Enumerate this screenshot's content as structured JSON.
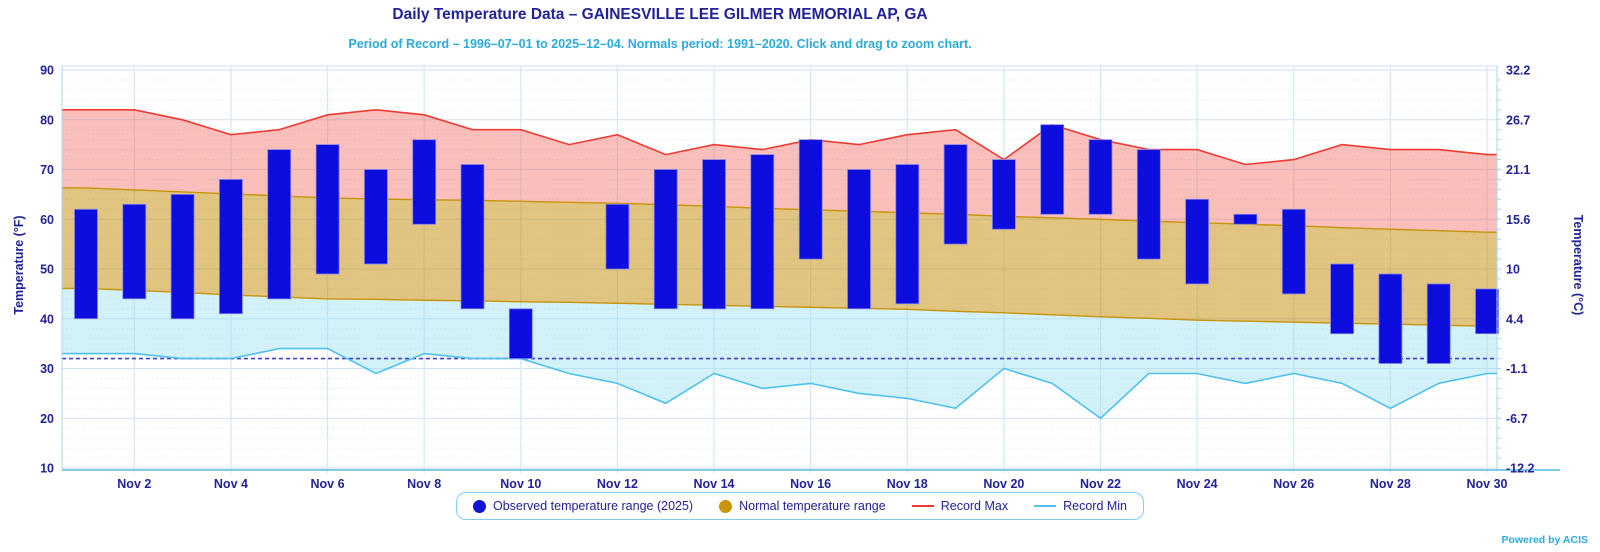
{
  "header": {
    "title": "Daily Temperature Data – GAINESVILLE LEE GILMER MEMORIAL AP, GA",
    "subtitle": "Period of Record – 1996–07–01 to 2025–12–04. Normals period: 1991–2020. Click and drag to zoom chart."
  },
  "footer": {
    "powered_by": "Powered by ACIS"
  },
  "axes": {
    "left_title": "Temperature (°F)",
    "right_title": "Temperature (°C)",
    "left_ticks_f": [
      90,
      80,
      70,
      60,
      50,
      40,
      30,
      20,
      10
    ],
    "right_ticks_c": [
      "32.2",
      "26.7",
      "21.1",
      "15.6",
      "10",
      "4.4",
      "-1.1",
      "-6.7",
      "-12.2"
    ],
    "x_tick_days": [
      2,
      4,
      6,
      8,
      10,
      12,
      14,
      16,
      18,
      20,
      22,
      24,
      26,
      28,
      30
    ],
    "x_tick_labels": [
      "Nov 2",
      "Nov 4",
      "Nov 6",
      "Nov 8",
      "Nov 10",
      "Nov 12",
      "Nov 14",
      "Nov 16",
      "Nov 18",
      "Nov 20",
      "Nov 22",
      "Nov 24",
      "Nov 26",
      "Nov 28",
      "Nov 30"
    ]
  },
  "legend": {
    "items": [
      {
        "label": "Observed temperature range (2025)",
        "swatch": "dot",
        "color": "#1313d6"
      },
      {
        "label": "Normal temperature range",
        "swatch": "dot",
        "color": "#c8940a"
      },
      {
        "label": "Record Max",
        "swatch": "line",
        "color": "#ee3b33"
      },
      {
        "label": "Record Min",
        "swatch": "line",
        "color": "#4fc1ef"
      }
    ]
  },
  "colors": {
    "text_navy": "#22229a",
    "subtitle_cyan": "#2aabdf",
    "bar_fill": "#0d0ddd",
    "bar_stroke": "#8585e6",
    "record_max_line": "#ee3b33",
    "record_max_fill": "rgba(244,103,92,0.42)",
    "normal_edge": "#c8940a",
    "normal_fill": "rgba(198,148,24,0.55)",
    "record_min_line": "#4fc1ef",
    "record_min_fill": "rgba(158,224,239,0.45)",
    "freezing_line": "#4040d0",
    "grid_major": "#cfe2f4",
    "grid_minor": "#dfecf8",
    "grid_vertical": "#cfe9f9",
    "axis_border": "#aad5ee",
    "axis_bottom": "#7ec8ea"
  },
  "chart_data": {
    "type": "combo: columnrange bars + arearange bands + record lines",
    "x_label_unit": "November 2025, days 1-30",
    "categories": [
      "Nov 1",
      "Nov 2",
      "Nov 3",
      "Nov 4",
      "Nov 5",
      "Nov 6",
      "Nov 7",
      "Nov 8",
      "Nov 9",
      "Nov 10",
      "Nov 11",
      "Nov 12",
      "Nov 13",
      "Nov 14",
      "Nov 15",
      "Nov 16",
      "Nov 17",
      "Nov 18",
      "Nov 19",
      "Nov 20",
      "Nov 21",
      "Nov 22",
      "Nov 23",
      "Nov 24",
      "Nov 25",
      "Nov 26",
      "Nov 27",
      "Nov 28",
      "Nov 29",
      "Nov 30"
    ],
    "ylim_f": [
      10,
      90
    ],
    "ylim_c": [
      -12.2,
      32.2
    ],
    "freezing_line_f": 32,
    "grid": "major horizontal every 10F, dotted minor every 2F, vertical every 2 days",
    "legend_position": "bottom-center",
    "series": [
      {
        "name": "Observed temperature range (2025)",
        "type": "columnrange",
        "high": [
          62,
          63,
          65,
          68,
          74,
          75,
          70,
          76,
          71,
          42,
          null,
          63,
          70,
          72,
          73,
          76,
          70,
          71,
          75,
          72,
          79,
          76,
          74,
          64,
          61,
          62,
          51,
          49,
          47,
          46
        ],
        "low": [
          40,
          44,
          40,
          41,
          44,
          49,
          51,
          59,
          42,
          32,
          null,
          50,
          42,
          42,
          42,
          52,
          42,
          43,
          55,
          58,
          61,
          61,
          52,
          47,
          59,
          45,
          37,
          31,
          31,
          37
        ]
      },
      {
        "name": "Normal temperature range",
        "type": "arearange",
        "high": [
          66.3,
          65.9,
          65.5,
          65.1,
          64.7,
          64.3,
          64.1,
          63.9,
          63.8,
          63.6,
          63.4,
          63.2,
          62.9,
          62.6,
          62.2,
          61.9,
          61.6,
          61.3,
          61.0,
          60.6,
          60.3,
          60.0,
          59.6,
          59.3,
          59.0,
          58.7,
          58.3,
          58.0,
          57.7,
          57.4
        ],
        "low": [
          46.1,
          45.7,
          45.3,
          44.8,
          44.4,
          44.0,
          43.9,
          43.7,
          43.6,
          43.4,
          43.3,
          43.1,
          42.9,
          42.7,
          42.5,
          42.3,
          42.1,
          41.9,
          41.5,
          41.2,
          40.8,
          40.4,
          40.1,
          39.7,
          39.5,
          39.3,
          39.1,
          38.9,
          38.7,
          38.5
        ]
      },
      {
        "name": "Record Max",
        "type": "line-with-area-down-to-normal-high",
        "values": [
          82,
          82,
          80,
          77,
          78,
          81,
          82,
          81,
          78,
          78,
          75,
          77,
          73,
          75,
          74,
          76,
          75,
          77,
          78,
          72,
          79,
          76,
          74,
          74,
          71,
          72,
          75,
          74,
          74,
          73
        ]
      },
      {
        "name": "Record Min",
        "type": "line-with-area-up-to-normal-low",
        "values": [
          33,
          33,
          32,
          32,
          34,
          34,
          29,
          33,
          32,
          32,
          29,
          27,
          23,
          29,
          26,
          27,
          25,
          24,
          22,
          30,
          27,
          20,
          29,
          29,
          27,
          29,
          27,
          22,
          27,
          29
        ]
      }
    ]
  }
}
